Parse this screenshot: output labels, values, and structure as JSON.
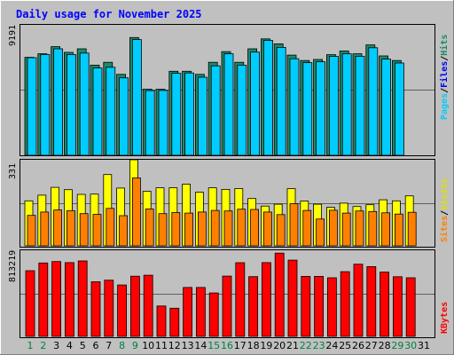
{
  "chart_data": {
    "type": "bar",
    "title": "Daily usage for November 2025",
    "categories": [
      "1",
      "2",
      "3",
      "4",
      "5",
      "6",
      "7",
      "8",
      "9",
      "10",
      "11",
      "12",
      "13",
      "14",
      "15",
      "16",
      "17",
      "18",
      "19",
      "20",
      "21",
      "22",
      "23",
      "24",
      "25",
      "26",
      "27",
      "28",
      "29",
      "30",
      "31"
    ],
    "weekend_days": [
      "1",
      "2",
      "8",
      "9",
      "15",
      "16",
      "22",
      "23",
      "29",
      "30"
    ],
    "panels": [
      {
        "name": "hits-files-pages",
        "ymax_label": "9191",
        "ylim": [
          0,
          9191
        ],
        "legend": [
          "Pages",
          "Files",
          "Hits"
        ],
        "series": [
          {
            "name": "Hits",
            "color": "#1b8a6b",
            "values": [
              6900,
              7150,
              7650,
              7250,
              7500,
              6350,
              6550,
              5700,
              8300,
              4660,
              4650,
              5920,
              5920,
              5700,
              6550,
              7300,
              6550,
              7500,
              8200,
              7850,
              7060,
              6680,
              6750,
              7090,
              7350,
              7150,
              7780,
              7000,
              6680,
              null,
              null
            ]
          },
          {
            "name": "Files",
            "color": "#00ccff",
            "values": [
              6880,
              7100,
              7500,
              7100,
              7200,
              6150,
              6200,
              5460,
              8150,
              4560,
              4570,
              5780,
              5800,
              5500,
              6300,
              7150,
              6350,
              7270,
              8100,
              7600,
              6800,
              6530,
              6590,
              6970,
              7150,
              6980,
              7580,
              6780,
              6500,
              null,
              null
            ]
          },
          {
            "name": "Pages",
            "color": "#0000ff",
            "values": [
              null,
              null,
              null,
              null,
              null,
              null,
              null,
              null,
              null,
              null,
              null,
              null,
              null,
              null,
              null,
              null,
              null,
              null,
              null,
              null,
              null,
              null,
              null,
              null,
              null,
              null,
              null,
              null,
              null,
              null,
              null
            ]
          }
        ]
      },
      {
        "name": "visits-sites",
        "ymax_label": "331",
        "ylim": [
          0,
          331
        ],
        "legend": [
          "Sites",
          "Visits"
        ],
        "series": [
          {
            "name": "Visits",
            "color": "#ffff00",
            "values": [
              173,
              195,
              225,
              216,
              198,
              199,
              274,
              222,
              331,
              210,
              223,
              223,
              237,
              206,
              223,
              217,
              220,
              182,
              153,
              160,
              220,
              172,
              160,
              148,
              164,
              151,
              158,
              177,
              173,
              192,
              null
            ]
          },
          {
            "name": "Sites",
            "color": "#ff8000",
            "values": [
              117,
              130,
              138,
              135,
              124,
              121,
              144,
              116,
              261,
              142,
              124,
              128,
              126,
              130,
              136,
              134,
              141,
              140,
              130,
              120,
              162,
              136,
              103,
              137,
              126,
              134,
              132,
              127,
              122,
              129,
              null
            ]
          }
        ]
      },
      {
        "name": "kbytes",
        "ymax_label": "813219",
        "ylim": [
          0,
          813219
        ],
        "legend": [
          "KBytes"
        ],
        "series": [
          {
            "name": "KBytes",
            "color": "#ff0000",
            "values": [
              620000,
              693000,
              707000,
              697000,
              713000,
              516000,
              531000,
              485000,
              568000,
              578000,
              287000,
              266000,
              462000,
              462000,
              410000,
              569000,
              696000,
              564000,
              697000,
              786000,
              720000,
              567000,
              567000,
              553000,
              611000,
              682000,
              659000,
              607000,
              563000,
              553000,
              null
            ]
          }
        ]
      }
    ]
  },
  "colors": {
    "background": "#c0c0c0",
    "title": "#0000ff",
    "panel_bg": "#c0c0c0",
    "day_weekday": "#000000",
    "day_weekend": "#008040",
    "hits": "#1b8a6b",
    "files": "#00ccff",
    "pages": "#0000ff",
    "visits": "#ffff00",
    "sites": "#ff8000",
    "kbytes": "#ff0000"
  }
}
